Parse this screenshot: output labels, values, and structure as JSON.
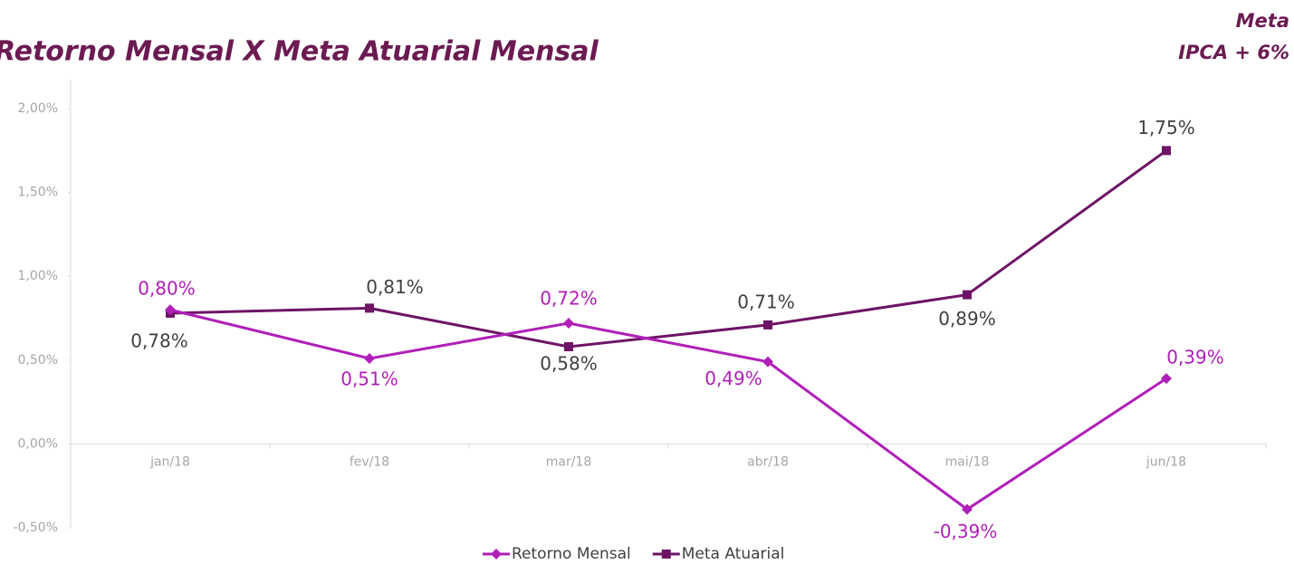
{
  "chart_data": {
    "type": "line",
    "title": "Retorno Mensal X Meta Atuarial Mensal",
    "subtitle": [
      "Meta",
      "IPCA + 6%"
    ],
    "categories": [
      "jan/18",
      "fev/18",
      "mar/18",
      "abr/18",
      "mai/18",
      "jun/18"
    ],
    "series": [
      {
        "name": "Retorno Mensal",
        "color": "#b01fb8",
        "marker": "diamond",
        "values": [
          0.8,
          0.51,
          0.72,
          0.49,
          -0.39,
          0.39
        ],
        "value_labels": [
          "0,80%",
          "0,51%",
          "0,72%",
          "0,49%",
          "-0,39%",
          "0,39%"
        ]
      },
      {
        "name": "Meta Atuarial",
        "color": "#6e1466",
        "marker": "square",
        "values": [
          0.78,
          0.81,
          0.58,
          0.71,
          0.89,
          1.75
        ],
        "value_labels": [
          "0,78%",
          "0,81%",
          "0,58%",
          "0,71%",
          "0,89%",
          "1,75%"
        ]
      }
    ],
    "ylim": [
      -0.5,
      2.0
    ],
    "yticks": [
      {
        "value": -0.5,
        "label": "-0,50%"
      },
      {
        "value": 0,
        "label": "0,00%"
      },
      {
        "value": 0.5,
        "label": "0,50%"
      },
      {
        "value": 1.0,
        "label": "1,00%"
      },
      {
        "value": 1.5,
        "label": "1,50%"
      },
      {
        "value": 2.0,
        "label": "2,00%"
      }
    ],
    "grid": false,
    "legend": "bottom"
  }
}
